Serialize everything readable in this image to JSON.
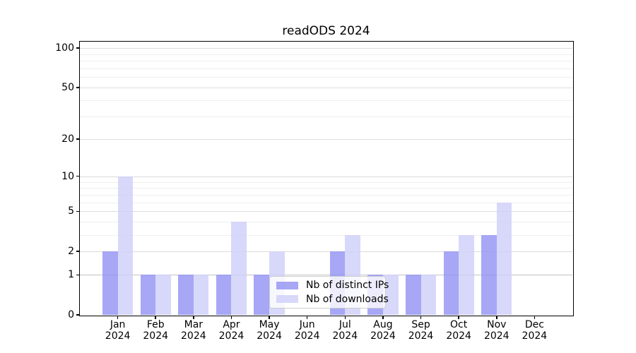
{
  "chart_data": {
    "type": "bar",
    "title": "readODS 2024",
    "xlabel": "",
    "ylabel": "",
    "yscale": "log1p",
    "ylim": [
      0,
      112
    ],
    "grid": "on",
    "legend_position": "lower-center",
    "year_label": "2024",
    "categories": [
      "Jan",
      "Feb",
      "Mar",
      "Apr",
      "May",
      "Jun",
      "Jul",
      "Aug",
      "Sep",
      "Oct",
      "Nov",
      "Dec"
    ],
    "series": [
      {
        "name": "Nb of distinct IPs",
        "color": "rgba(148,148,244,0.82)",
        "values": [
          2,
          1,
          1,
          1,
          1,
          0,
          2,
          1,
          1,
          2,
          3,
          0
        ]
      },
      {
        "name": "Nb of downloads",
        "color": "rgba(208,208,249,0.82)",
        "values": [
          10,
          1,
          1,
          4,
          2,
          0,
          3,
          1,
          1,
          3,
          6,
          0
        ]
      }
    ],
    "y_ticks": [
      0,
      1,
      2,
      5,
      10,
      20,
      50,
      100
    ],
    "y_minor_ticks": [
      3,
      4,
      6,
      7,
      8,
      9,
      30,
      40,
      60,
      70,
      80,
      90
    ],
    "colors": {
      "axis": "#000000",
      "grid_major": "#dcdcdc",
      "grid_minor": "#efefef",
      "grid_emphasis": "#c2c2c2"
    }
  }
}
